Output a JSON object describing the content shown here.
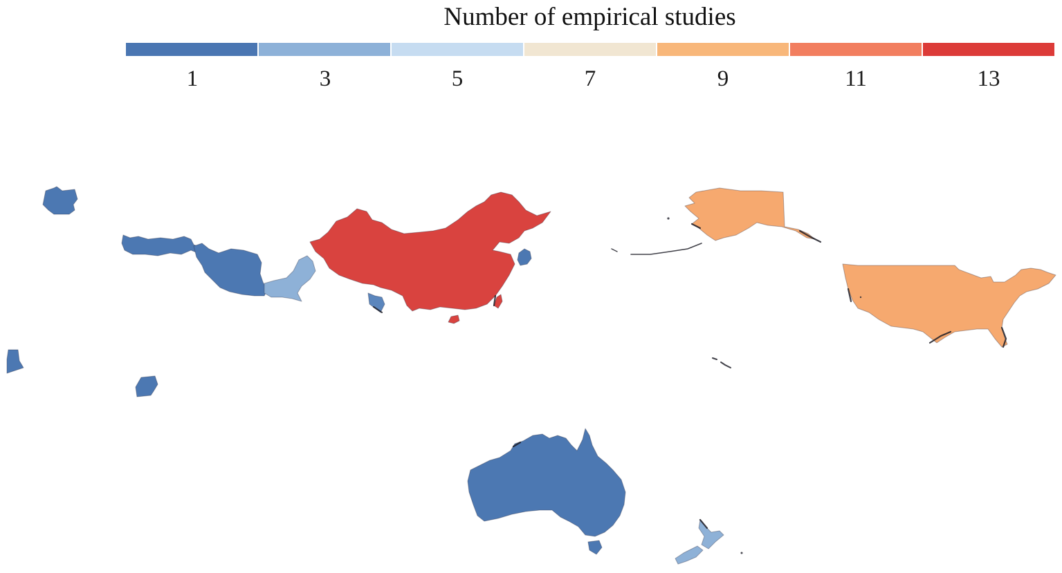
{
  "legend": {
    "title": "Number of empirical studies",
    "ticks": [
      "1",
      "3",
      "5",
      "7",
      "9",
      "11",
      "13"
    ],
    "colors": [
      "#4a76b2",
      "#8db1d8",
      "#c6dcf1",
      "#f1e6d2",
      "#f8b77a",
      "#f27e5f",
      "#dc3b38"
    ]
  },
  "map_data": {
    "type": "choropleth",
    "value_label": "Number of empirical studies",
    "regions": [
      {
        "name": "China",
        "color": "#d9433f"
      },
      {
        "name": "Alaska",
        "color": "#f6a96f"
      },
      {
        "name": "United States",
        "color": "#f6a96f"
      },
      {
        "name": "Australia",
        "color": "#4c78b2"
      },
      {
        "name": "New Zealand",
        "color": "#8eb1d7"
      },
      {
        "name": "Pakistan",
        "color": "#8eb1d7"
      },
      {
        "name": "Iran",
        "color": "#4c78b2"
      },
      {
        "name": "Turkey",
        "color": "#4c78b2"
      },
      {
        "name": "Germany",
        "color": "#4c78b2"
      },
      {
        "name": "Nigeria",
        "color": "#4c78b2"
      },
      {
        "name": "Ghana",
        "color": "#4c78b2"
      },
      {
        "name": "South Korea",
        "color": "#4c78b2"
      },
      {
        "name": "Bangladesh",
        "color": "#5b86bd"
      }
    ]
  }
}
